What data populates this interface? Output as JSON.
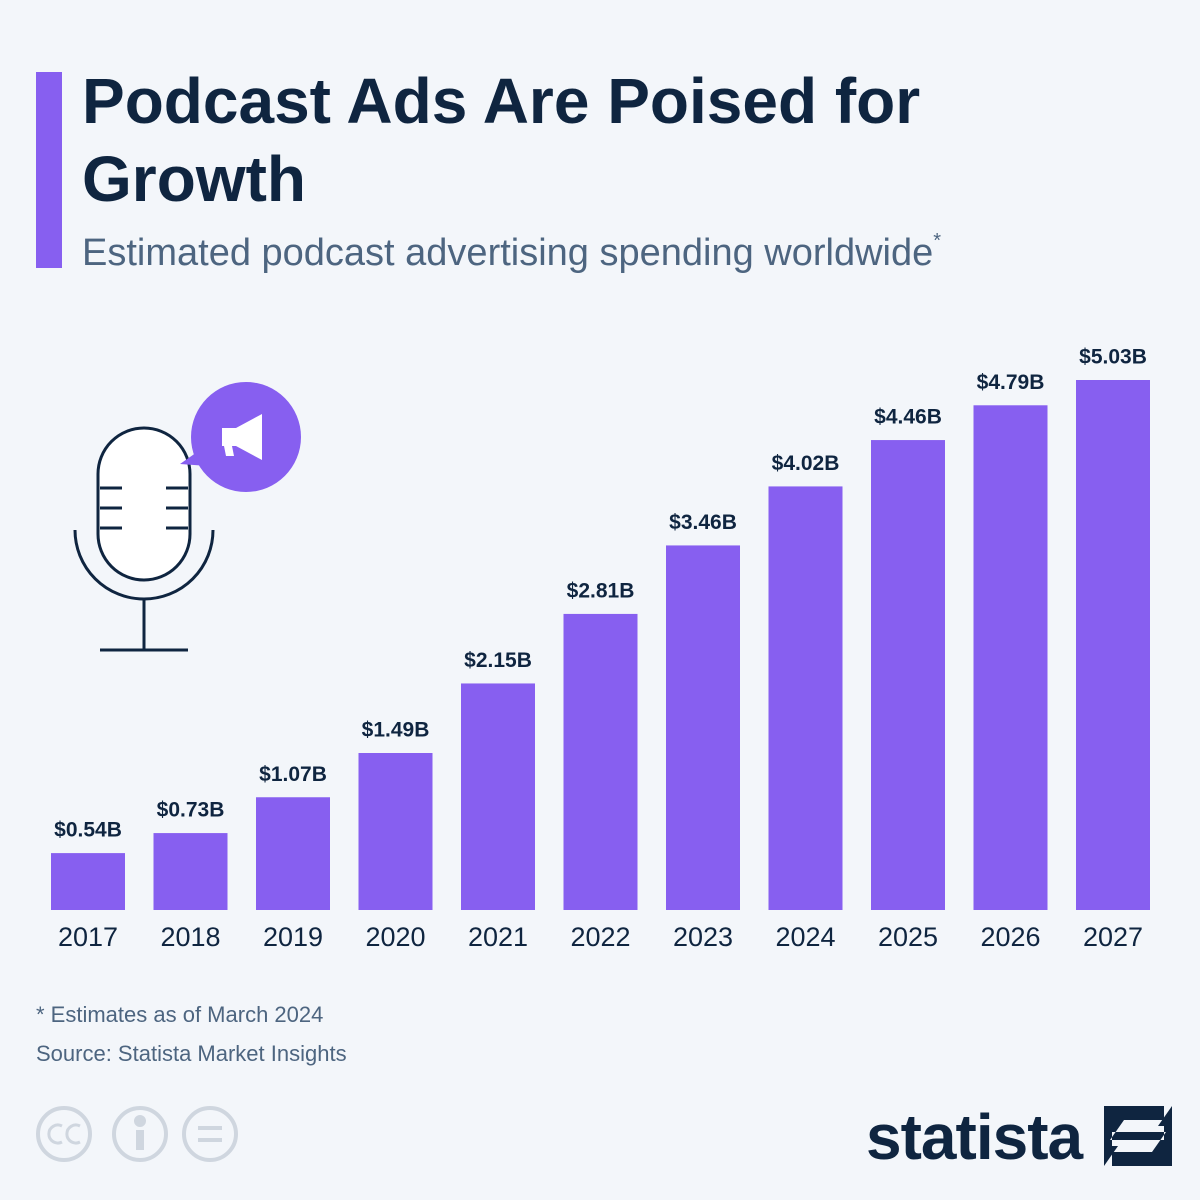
{
  "chart_data": {
    "type": "bar",
    "title": "Podcast Ads Are Poised for Growth",
    "subtitle": "Estimated podcast advertising spending worldwide",
    "subtitle_marker": "*",
    "categories": [
      "2017",
      "2018",
      "2019",
      "2020",
      "2021",
      "2022",
      "2023",
      "2024",
      "2025",
      "2026",
      "2027"
    ],
    "values": [
      0.54,
      0.73,
      1.07,
      1.49,
      2.15,
      2.81,
      3.46,
      4.02,
      4.46,
      4.79,
      5.03
    ],
    "value_labels": [
      "$0.54B",
      "$0.73B",
      "$1.07B",
      "$1.49B",
      "$2.15B",
      "$2.81B",
      "$3.46B",
      "$4.02B",
      "$4.46B",
      "$4.79B",
      "$5.03B"
    ],
    "color": "#875ff0",
    "footnote": "* Estimates as of March 2024",
    "source": "Source: Statista Market Insights",
    "brand": "statista"
  }
}
